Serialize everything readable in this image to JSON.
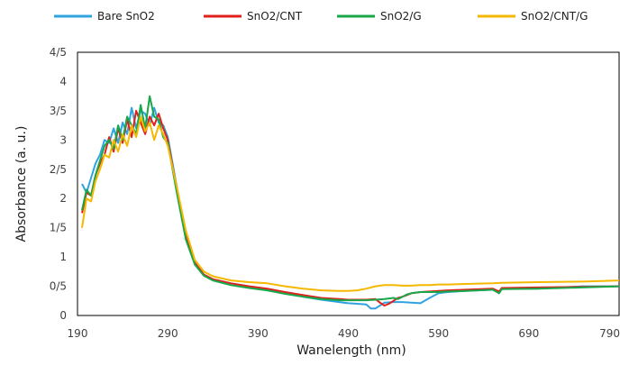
{
  "chart_data": {
    "type": "line",
    "title": "",
    "xlabel": "Wanelength (nm)",
    "ylabel": "Absorbance (a. u.)",
    "xlim": [
      190,
      790
    ],
    "ylim": [
      0,
      4.5
    ],
    "x_ticks": [
      "190",
      "290",
      "390",
      "490",
      "590",
      "690",
      "790"
    ],
    "y_ticks": [
      "0",
      "0/5",
      "1",
      "1/5",
      "2",
      "2/5",
      "3",
      "3/5",
      "4",
      "4/5"
    ],
    "legend_position": "top",
    "grid": false,
    "series": [
      {
        "name": "Bare SnO2",
        "color": "#2ea3e0",
        "x": [
          195,
          200,
          205,
          210,
          215,
          220,
          225,
          230,
          235,
          240,
          245,
          250,
          255,
          260,
          265,
          270,
          275,
          280,
          285,
          290,
          300,
          310,
          320,
          330,
          340,
          360,
          380,
          400,
          420,
          440,
          460,
          480,
          490,
          500,
          510,
          515,
          520,
          525,
          530,
          540,
          550,
          560,
          570,
          580,
          590,
          600,
          620,
          650,
          657,
          660,
          700,
          750,
          790
        ],
        "y": [
          2.25,
          2.1,
          2.35,
          2.6,
          2.75,
          3.0,
          2.95,
          3.2,
          2.95,
          3.3,
          3.1,
          3.55,
          3.2,
          3.5,
          3.45,
          3.25,
          3.55,
          3.3,
          3.25,
          3.05,
          2.2,
          1.35,
          0.9,
          0.7,
          0.62,
          0.55,
          0.5,
          0.45,
          0.38,
          0.32,
          0.27,
          0.23,
          0.21,
          0.2,
          0.19,
          0.12,
          0.12,
          0.17,
          0.22,
          0.23,
          0.23,
          0.22,
          0.21,
          0.3,
          0.38,
          0.4,
          0.42,
          0.44,
          0.38,
          0.46,
          0.46,
          0.5,
          0.5
        ]
      },
      {
        "name": "SnO2/CNT",
        "color": "#e0201a",
        "x": [
          195,
          200,
          205,
          210,
          215,
          220,
          225,
          230,
          235,
          240,
          245,
          250,
          255,
          260,
          265,
          270,
          275,
          280,
          285,
          290,
          300,
          310,
          320,
          330,
          340,
          360,
          380,
          400,
          420,
          440,
          460,
          480,
          490,
          500,
          510,
          520,
          525,
          530,
          535,
          540,
          545,
          550,
          555,
          560,
          570,
          580,
          590,
          600,
          620,
          650,
          657,
          660,
          700,
          750,
          790
        ],
        "y": [
          1.75,
          2.1,
          2.05,
          2.4,
          2.6,
          2.75,
          3.05,
          2.8,
          3.2,
          2.95,
          3.35,
          3.05,
          3.5,
          3.3,
          3.1,
          3.4,
          3.25,
          3.45,
          3.2,
          3.0,
          2.15,
          1.35,
          0.9,
          0.7,
          0.62,
          0.55,
          0.5,
          0.46,
          0.4,
          0.35,
          0.3,
          0.28,
          0.27,
          0.27,
          0.27,
          0.28,
          0.22,
          0.17,
          0.2,
          0.25,
          0.3,
          0.32,
          0.35,
          0.38,
          0.4,
          0.41,
          0.42,
          0.43,
          0.44,
          0.46,
          0.41,
          0.47,
          0.48,
          0.49,
          0.5
        ]
      },
      {
        "name": "SnO2/G",
        "color": "#18a84a",
        "x": [
          195,
          200,
          205,
          210,
          215,
          220,
          225,
          230,
          235,
          240,
          245,
          250,
          255,
          260,
          265,
          270,
          275,
          280,
          285,
          290,
          300,
          310,
          320,
          330,
          340,
          360,
          380,
          400,
          420,
          440,
          460,
          480,
          490,
          500,
          510,
          520,
          530,
          540,
          545,
          550,
          555,
          560,
          570,
          580,
          590,
          600,
          620,
          650,
          657,
          660,
          700,
          750,
          790
        ],
        "y": [
          1.8,
          2.15,
          2.05,
          2.4,
          2.65,
          2.9,
          3.0,
          2.85,
          3.25,
          3.0,
          3.4,
          3.25,
          3.1,
          3.6,
          3.2,
          3.75,
          3.4,
          3.35,
          3.05,
          2.95,
          2.1,
          1.3,
          0.87,
          0.68,
          0.6,
          0.52,
          0.47,
          0.43,
          0.37,
          0.32,
          0.28,
          0.26,
          0.26,
          0.26,
          0.26,
          0.27,
          0.28,
          0.3,
          0.28,
          0.32,
          0.36,
          0.38,
          0.4,
          0.4,
          0.4,
          0.41,
          0.42,
          0.44,
          0.38,
          0.45,
          0.46,
          0.48,
          0.5
        ]
      },
      {
        "name": "SnO2/CNT/G",
        "color": "#f5b800",
        "x": [
          195,
          200,
          205,
          210,
          215,
          220,
          225,
          230,
          235,
          240,
          245,
          250,
          255,
          260,
          265,
          270,
          275,
          280,
          285,
          290,
          300,
          310,
          320,
          330,
          340,
          360,
          380,
          400,
          420,
          440,
          460,
          480,
          490,
          500,
          510,
          520,
          530,
          540,
          550,
          560,
          570,
          580,
          590,
          600,
          620,
          650,
          660,
          700,
          750,
          790
        ],
        "y": [
          1.5,
          2.0,
          1.95,
          2.3,
          2.5,
          2.75,
          2.7,
          3.0,
          2.8,
          3.1,
          2.9,
          3.25,
          3.05,
          3.4,
          3.15,
          3.3,
          3.0,
          3.25,
          3.1,
          2.9,
          2.2,
          1.45,
          0.95,
          0.75,
          0.67,
          0.6,
          0.57,
          0.55,
          0.5,
          0.46,
          0.43,
          0.42,
          0.42,
          0.43,
          0.46,
          0.5,
          0.52,
          0.52,
          0.51,
          0.51,
          0.52,
          0.52,
          0.53,
          0.53,
          0.54,
          0.55,
          0.56,
          0.57,
          0.58,
          0.6
        ]
      }
    ]
  }
}
